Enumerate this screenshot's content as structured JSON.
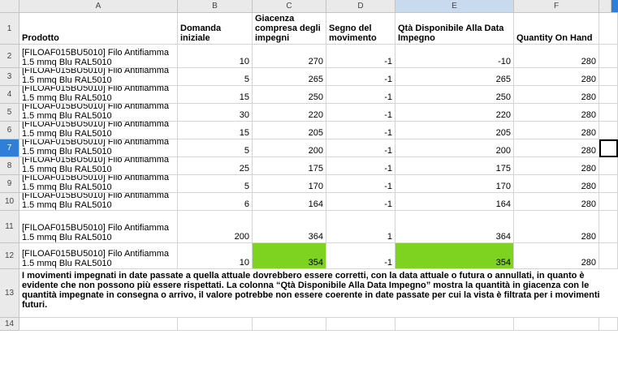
{
  "column_letters": [
    "A",
    "B",
    "C",
    "D",
    "E",
    "F"
  ],
  "row_numbers": [
    "1",
    "2",
    "3",
    "4",
    "5",
    "6",
    "7",
    "8",
    "9",
    "10",
    "11",
    "12",
    "13",
    "14"
  ],
  "active_row": "7",
  "headers": {
    "prodotto": "Prodotto",
    "domanda": "Domanda iniziale",
    "giacenza": "Giacenza compresa degli impegni",
    "segno": "Segno del movimento",
    "qta": "Qtà Disponibile Alla Data Impegno",
    "onhand": "Quantity On Hand"
  },
  "rows": [
    {
      "prodotto": "[FILOAF015BU5010] Filo Antifiamma 1.5 mmq Blu RAL5010",
      "domanda": "10",
      "giacenza": "270",
      "segno": "-1",
      "qta": "-10",
      "onhand": "280"
    },
    {
      "prodotto": "[FILOAF015BU5010] Filo Antifiamma 1.5 mmq Blu RAL5010",
      "domanda": "5",
      "giacenza": "265",
      "segno": "-1",
      "qta": "265",
      "onhand": "280"
    },
    {
      "prodotto": "[FILOAF015BU5010] Filo Antifiamma 1.5 mmq Blu RAL5010",
      "domanda": "15",
      "giacenza": "250",
      "segno": "-1",
      "qta": "250",
      "onhand": "280"
    },
    {
      "prodotto": "[FILOAF015BU5010] Filo Antifiamma 1.5 mmq Blu RAL5010",
      "domanda": "30",
      "giacenza": "220",
      "segno": "-1",
      "qta": "220",
      "onhand": "280"
    },
    {
      "prodotto": "[FILOAF015BU5010] Filo Antifiamma 1.5 mmq Blu RAL5010",
      "domanda": "15",
      "giacenza": "205",
      "segno": "-1",
      "qta": "205",
      "onhand": "280"
    },
    {
      "prodotto": "[FILOAF015BU5010] Filo Antifiamma 1.5 mmq Blu RAL5010",
      "domanda": "5",
      "giacenza": "200",
      "segno": "-1",
      "qta": "200",
      "onhand": "280"
    },
    {
      "prodotto": "[FILOAF015BU5010] Filo Antifiamma 1.5 mmq Blu RAL5010",
      "domanda": "25",
      "giacenza": "175",
      "segno": "-1",
      "qta": "175",
      "onhand": "280"
    },
    {
      "prodotto": "[FILOAF015BU5010] Filo Antifiamma 1.5 mmq Blu RAL5010",
      "domanda": "5",
      "giacenza": "170",
      "segno": "-1",
      "qta": "170",
      "onhand": "280"
    },
    {
      "prodotto": "[FILOAF015BU5010] Filo Antifiamma 1.5 mmq Blu RAL5010",
      "domanda": "6",
      "giacenza": "164",
      "segno": "-1",
      "qta": "164",
      "onhand": "280"
    },
    {
      "prodotto": "[FILOAF015BU5010] Filo Antifiamma 1.5 mmq Blu RAL5010",
      "domanda": "200",
      "giacenza": "364",
      "segno": "1",
      "qta": "364",
      "onhand": "280"
    },
    {
      "prodotto": "[FILOAF015BU5010] Filo Antifiamma 1.5 mmq Blu RAL5010",
      "domanda": "10",
      "giacenza": "354",
      "segno": "-1",
      "qta": "354",
      "onhand": "280"
    }
  ],
  "highlight_color": "#7ed321",
  "note": "I movimenti impegnati in date passate a quella attuale dovrebbero essere corretti, con la data attuale o futura o annullati, in quanto è evidente che non possono più essere rispettati. La colonna “Qtà Disponibile Alla Data Impegno” mostra la quantità in giacenza con le quantità impegnate in consegna o arrivo, il valore potrebbe non essere coerente in date passate per cui la vista è filtrata per i movimenti futuri."
}
